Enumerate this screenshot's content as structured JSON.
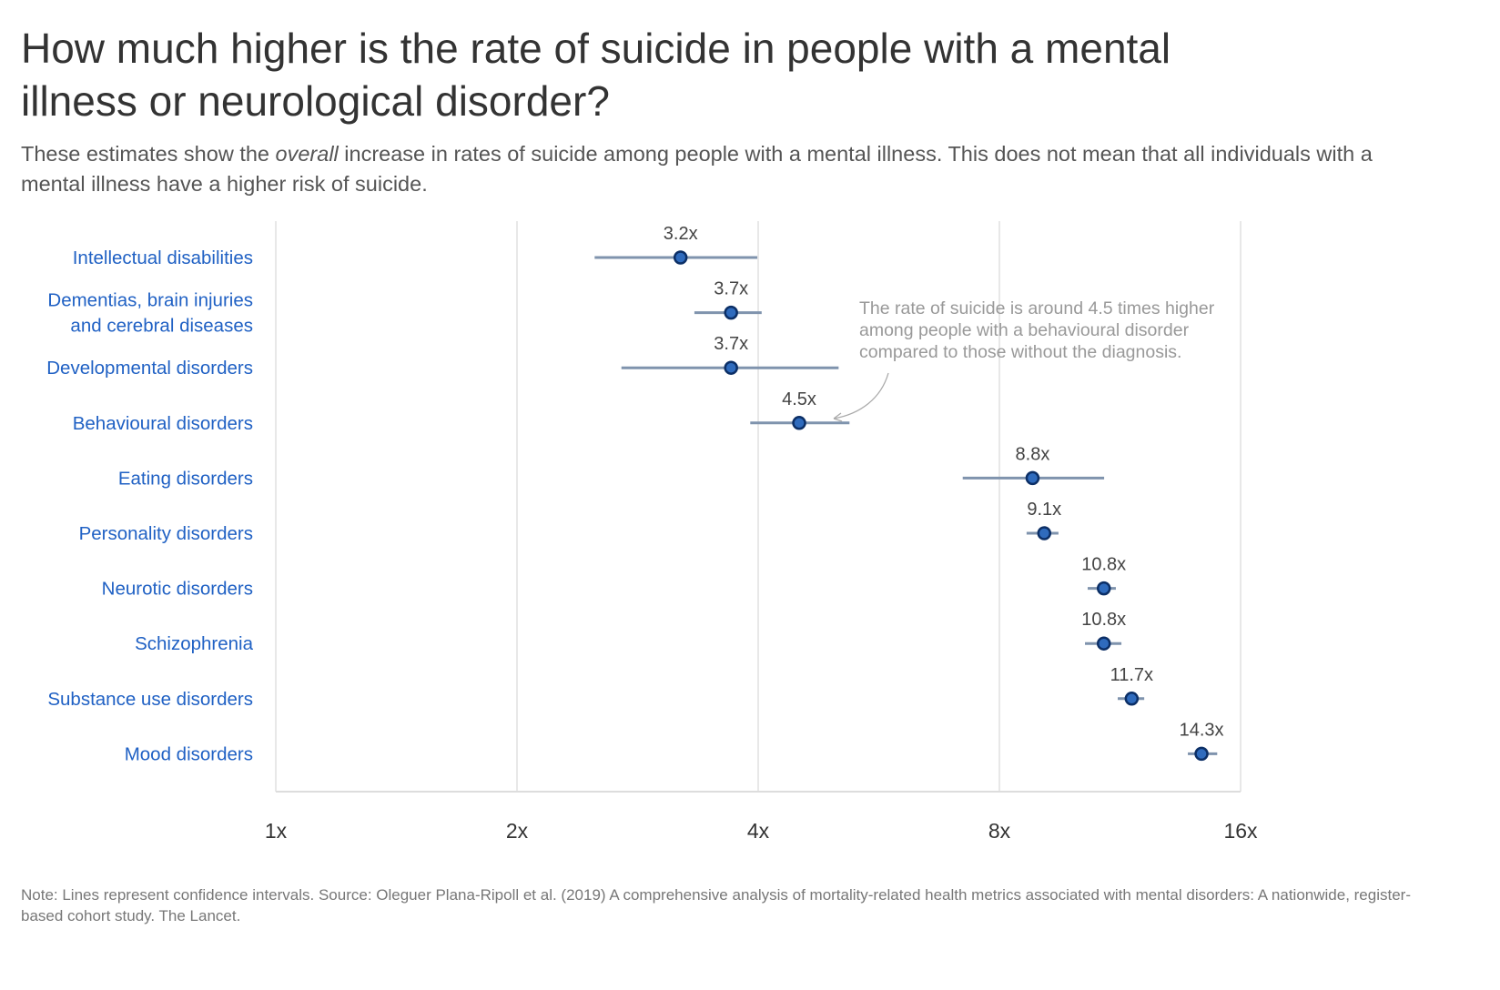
{
  "title": "How much higher is the rate of suicide in people with a mental illness or neurological disorder?",
  "subtitle_pre": "These estimates show the ",
  "subtitle_em": "overall",
  "subtitle_post": " increase in rates of suicide among people with a mental illness. This does not mean that all individuals with a mental illness have a higher risk of suicide.",
  "note": "Note: Lines represent confidence intervals. Source: Oleguer Plana-Ripoll et al. (2019) A comprehensive analysis of mortality-related health metrics associated with mental disorders: A nationwide, register-based cohort study. The Lancet.",
  "chart_data": {
    "type": "scatter",
    "x_scale": "log2",
    "xlim": [
      1,
      16
    ],
    "x_ticks": [
      1,
      2,
      4,
      8,
      16
    ],
    "x_tick_labels": [
      "1x",
      "2x",
      "4x",
      "8x",
      "16x"
    ],
    "grid": true,
    "colors": {
      "point": "#2f6bbd",
      "point_stroke": "#0c2f66",
      "ci": "#7f93ad",
      "grid": "#e8e8e8",
      "label": "#2061c4"
    },
    "categories": [
      [
        "Intellectual disabilities"
      ],
      [
        "Dementias, brain injuries",
        "and cerebral diseases"
      ],
      [
        "Developmental disorders"
      ],
      [
        "Behavioural disorders"
      ],
      [
        "Eating disorders"
      ],
      [
        "Personality disorders"
      ],
      [
        "Neurotic disorders"
      ],
      [
        "Schizophrenia"
      ],
      [
        "Substance use disorders"
      ],
      [
        "Mood disorders"
      ]
    ],
    "values": [
      3.2,
      3.7,
      3.7,
      4.5,
      8.8,
      9.1,
      10.8,
      10.8,
      11.7,
      14.3
    ],
    "value_labels": [
      "3.2x",
      "3.7x",
      "3.7x",
      "4.5x",
      "8.8x",
      "9.1x",
      "10.8x",
      "10.8x",
      "11.7x",
      "14.3x"
    ],
    "ci_low": [
      2.5,
      3.33,
      2.7,
      3.91,
      7.2,
      8.65,
      10.31,
      10.23,
      11.24,
      13.75
    ],
    "ci_high": [
      3.99,
      4.04,
      5.04,
      5.2,
      10.81,
      9.48,
      11.18,
      11.36,
      12.13,
      14.96
    ],
    "annotation": {
      "target": "Behavioural disorders",
      "lines": [
        "The rate of suicide is around 4.5 times higher",
        "among people with a behavioural disorder",
        "compared to those without the diagnosis."
      ]
    }
  }
}
